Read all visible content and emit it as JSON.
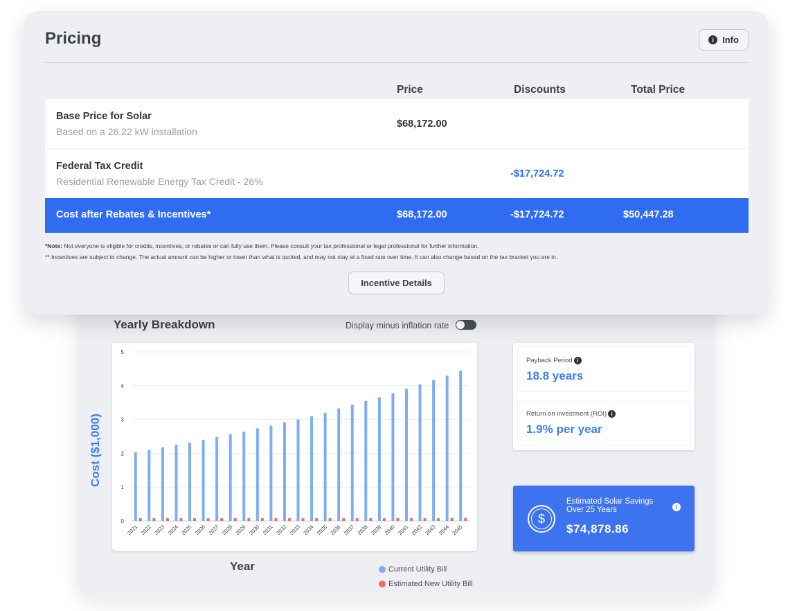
{
  "pricing": {
    "title": "Pricing",
    "info_label": "Info",
    "columns": [
      "Price",
      "Discounts",
      "Total Price"
    ],
    "rows": [
      {
        "name": "Base Price for Solar",
        "description": "Based on a 26.22 kW installation",
        "price": "$68,172.00",
        "discount": "",
        "total": ""
      },
      {
        "name": "Federal Tax Credit",
        "description": "Residential Renewable Energy Tax Credit - 26%",
        "price": "",
        "discount": "-$17,724.72",
        "total": ""
      },
      {
        "name": "Cost after Rebates & Incentives*",
        "description": "",
        "price": "$68,172.00",
        "discount": "-$17,724.72",
        "total": "$50,447.28"
      }
    ],
    "note_label": "*Note:",
    "note_text": " Not everyone is eligible for credits, incentives, or rebates or can fully use them. Please consult your tax professional or legal professional for further information.",
    "note2_text": "** Incentives are subject to change. The actual amount can be higher or lower than what is quoted, and may not stay at a fixed rate over time. It can also change based on the tax bracket you are in.",
    "incentive_button": "Incentive Details"
  },
  "breakdown": {
    "title": "Yearly Breakdown",
    "toggle_label": "Display minus inflation rate",
    "toggle_on": false,
    "ylabel": "Cost ($1,000)",
    "xlabel": "Year",
    "legend": [
      "Current Utility Bill",
      "Estimated New Utility Bill"
    ]
  },
  "stats": {
    "payback_label": "Payback Period",
    "payback_value": "18.8 years",
    "roi_label": "Return on investment (ROI)",
    "roi_value": "1.9% per year"
  },
  "savings": {
    "title": "Estimated Solar Savings Over 25 Years",
    "amount": "$74,878.86",
    "icon": "dollar-icon"
  },
  "colors": {
    "accent": "#2f6cf2",
    "current_bar": "#7fadf3",
    "new_bar": "#ef6b6b"
  },
  "chart_data": {
    "type": "bar",
    "categories": [
      "2021",
      "2022",
      "2023",
      "2024",
      "2025",
      "2026",
      "2027",
      "2028",
      "2029",
      "2030",
      "2031",
      "2032",
      "2033",
      "2034",
      "2035",
      "2036",
      "2037",
      "2038",
      "2039",
      "2040",
      "2041",
      "2042",
      "2043",
      "2044",
      "2045"
    ],
    "series": [
      {
        "name": "Current Utility Bill",
        "values": [
          2.03,
          2.1,
          2.18,
          2.25,
          2.32,
          2.4,
          2.48,
          2.56,
          2.64,
          2.74,
          2.82,
          2.92,
          3.0,
          3.1,
          3.2,
          3.33,
          3.44,
          3.55,
          3.66,
          3.78,
          3.91,
          4.04,
          4.17,
          4.3,
          4.45
        ]
      },
      {
        "name": "Estimated New Utility Bill",
        "values": [
          0.08,
          0.08,
          0.08,
          0.08,
          0.08,
          0.08,
          0.08,
          0.08,
          0.08,
          0.08,
          0.08,
          0.08,
          0.08,
          0.08,
          0.08,
          0.08,
          0.08,
          0.08,
          0.08,
          0.08,
          0.08,
          0.08,
          0.08,
          0.09,
          0.09
        ]
      }
    ],
    "yticks": [
      0,
      1,
      2,
      3,
      4,
      5
    ],
    "ylim": [
      0,
      5
    ],
    "xlabel": "Year",
    "ylabel": "Cost ($1,000)",
    "legend_position": "bottom-right",
    "grid": true
  }
}
